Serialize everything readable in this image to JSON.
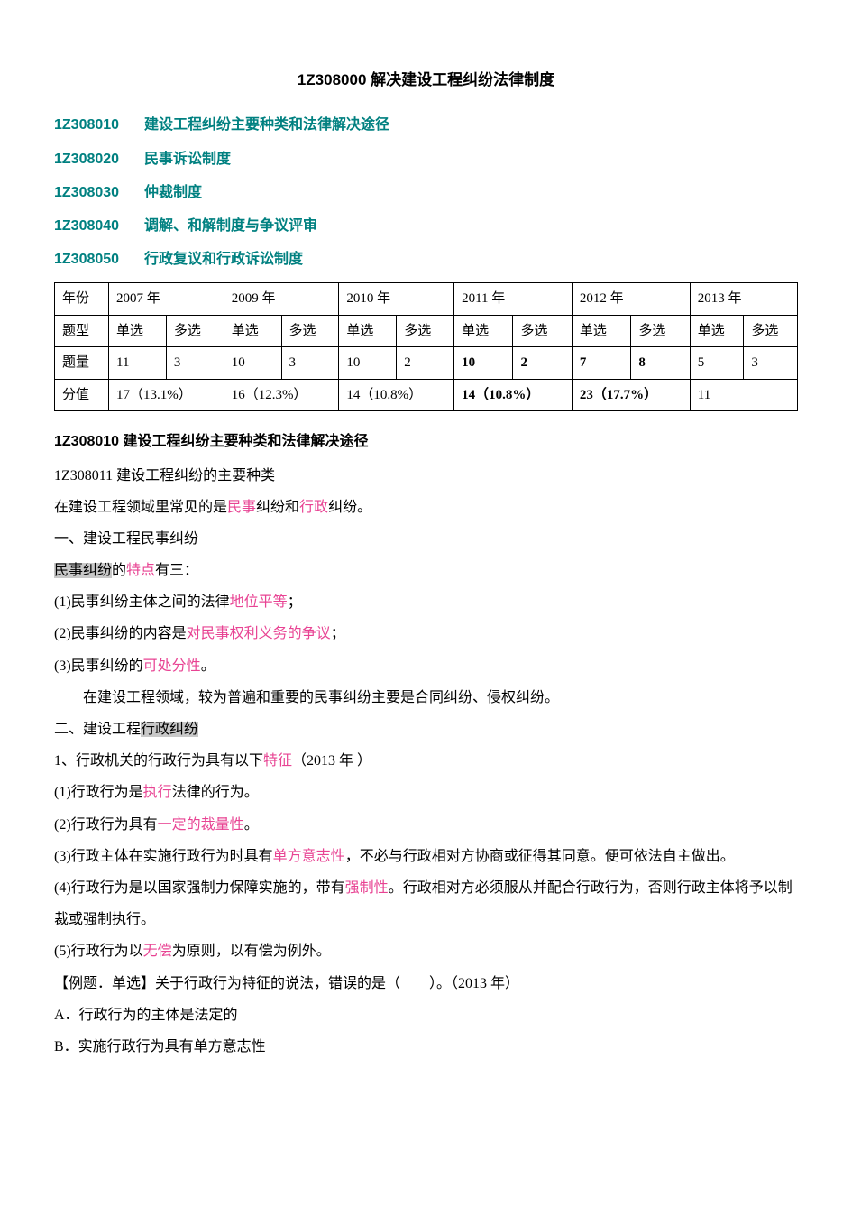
{
  "title": "1Z308000 解决建设工程纠纷法律制度",
  "toc": [
    {
      "code": "1Z308010",
      "text": "建设工程纠纷主要种类和法律解决途径"
    },
    {
      "code": "1Z308020",
      "text": "民事诉讼制度"
    },
    {
      "code": "1Z308030",
      "text": "仲裁制度"
    },
    {
      "code": "1Z308040",
      "text": "调解、和解制度与争议评审"
    },
    {
      "code": "1Z308050",
      "text": "行政复议和行政诉讼制度"
    }
  ],
  "table": {
    "row1_label": "年份",
    "years": [
      "2007 年",
      "2009 年",
      "2010 年",
      "2011 年",
      "2012 年",
      "2013 年"
    ],
    "row2_label": "题型",
    "qtypes": [
      "单选",
      "多选",
      "单选",
      "多选",
      "单选",
      "多选",
      "单选",
      "多选",
      "单选",
      "多选",
      "单选",
      "多选"
    ],
    "row3_label": "题量",
    "qcounts": [
      "11",
      "3",
      "10",
      "3",
      "10",
      "2",
      "10",
      "2",
      "7",
      "8",
      "5",
      "3"
    ],
    "qcount_bold": [
      false,
      false,
      false,
      false,
      false,
      false,
      true,
      true,
      true,
      true,
      false,
      false
    ],
    "row4_label": "分值",
    "scores": [
      "17（13.1%）",
      "16（12.3%）",
      "14（10.8%）",
      "14（10.8%）",
      "23（17.7%）",
      "11"
    ],
    "score_bold": [
      false,
      false,
      false,
      true,
      true,
      false
    ]
  },
  "section_heading": "1Z308010 建设工程纠纷主要种类和法律解决途径",
  "lines": {
    "l01": "1Z308011 建设工程纠纷的主要种类",
    "l02a": "在建设工程领域里常见的是",
    "l02b": "民事",
    "l02c": "纠纷和",
    "l02d": "行政",
    "l02e": "纠纷。",
    "l03": "一、建设工程民事纠纷",
    "l04a": "民事纠纷",
    "l04b": "的",
    "l04c": "特点",
    "l04d": "有三：",
    "l05a": "(1)民事纠纷主体之间的法律",
    "l05b": "地位平等",
    "l05c": "；",
    "l06a": "(2)民事纠纷的内容是",
    "l06b": "对民事权利义务的争议",
    "l06c": "；",
    "l07a": "(3)民事纠纷的",
    "l07b": "可处分性",
    "l07c": "。",
    "l08": "在建设工程领域，较为普遍和重要的民事纠纷主要是合同纠纷、侵权纠纷。",
    "l09a": "二、建设工程",
    "l09b": "行政纠纷",
    "l10a": "1、行政机关的行政行为具有以下",
    "l10b": "特征",
    "l10c": "（2013 年 ）",
    "l11a": "(1)行政行为是",
    "l11b": "执行",
    "l11c": "法律的行为。",
    "l12a": "(2)行政行为具有",
    "l12b": "一定的裁量性",
    "l12c": "。",
    "l13a": "(3)行政主体在实施行政行为时具有",
    "l13b": "单方意志性",
    "l13c": "，不必与行政相对方协商或征得其同意。便可依法自主做出。",
    "l14a": "(4)行政行为是以国家强制力保障实施的，带有",
    "l14b": "强制性",
    "l14c": "。行政相对方必须服从并配合行政行为，否则行政主体将予以制裁或强制执行。",
    "l15a": "(5)行政行为以",
    "l15b": "无偿",
    "l15c": "为原则，以有偿为例外。",
    "l16": "【例题．单选】关于行政行为特征的说法，错误的是（　　）。（2013 年）",
    "l17": "A．行政行为的主体是法定的",
    "l18": "B．实施行政行为具有单方意志性"
  },
  "colors": {
    "teal": "#008080",
    "pink": "#e84393",
    "highlight_bg": "#c8c8c8",
    "text": "#000000",
    "background": "#ffffff",
    "border": "#000000"
  }
}
